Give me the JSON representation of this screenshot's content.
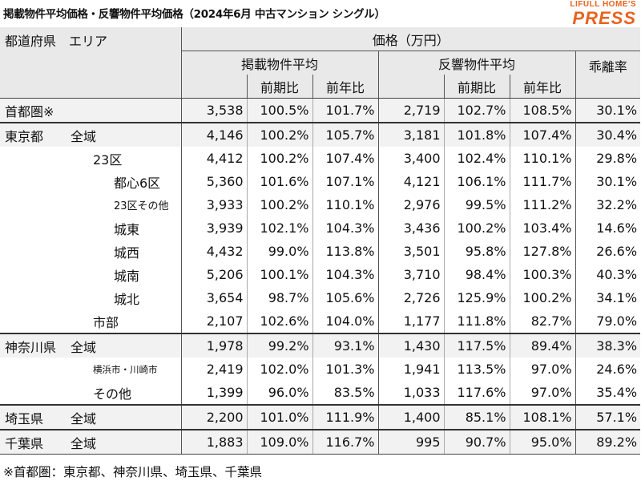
{
  "title": "掲載物件平均価格・反響物件平均価格（2024年6月 中古マンション シングル）",
  "logo": {
    "top": "LIFULL HOME'S",
    "main": "PRESS"
  },
  "colors": {
    "logo": "#e8621e",
    "header_bg": "#e9e9e9",
    "row_shade": "#f2f2f2"
  },
  "header": {
    "pref_area": "都道府県　エリア",
    "price": "価格（万円）",
    "listing_avg": "掲載物件平均",
    "response_avg": "反響物件平均",
    "divergence": "乖離率",
    "prev_period": "前期比",
    "prev_year": "前年比"
  },
  "rows": [
    {
      "name": "首都圏※",
      "area": "",
      "l_price": "3,538",
      "l_qoq": "100.5%",
      "l_yoy": "101.7%",
      "r_price": "2,719",
      "r_qoq": "102.7%",
      "r_yoy": "108.5%",
      "div": "30.1%"
    },
    {
      "name": "東京都",
      "area": "全域",
      "l_price": "4,146",
      "l_qoq": "100.2%",
      "l_yoy": "105.7%",
      "r_price": "3,181",
      "r_qoq": "101.8%",
      "r_yoy": "107.4%",
      "div": "30.4%"
    },
    {
      "name": "",
      "area": "23区",
      "l_price": "4,412",
      "l_qoq": "100.2%",
      "l_yoy": "107.4%",
      "r_price": "3,400",
      "r_qoq": "102.4%",
      "r_yoy": "110.1%",
      "div": "29.8%"
    },
    {
      "name": "",
      "area": "都心6区",
      "l_price": "5,360",
      "l_qoq": "101.6%",
      "l_yoy": "107.1%",
      "r_price": "4,121",
      "r_qoq": "106.1%",
      "r_yoy": "111.7%",
      "div": "30.1%"
    },
    {
      "name": "",
      "area": "23区その他",
      "l_price": "3,933",
      "l_qoq": "100.2%",
      "l_yoy": "110.1%",
      "r_price": "2,976",
      "r_qoq": "99.5%",
      "r_yoy": "111.2%",
      "div": "32.2%"
    },
    {
      "name": "",
      "area": "城東",
      "l_price": "3,939",
      "l_qoq": "102.1%",
      "l_yoy": "104.3%",
      "r_price": "3,436",
      "r_qoq": "100.2%",
      "r_yoy": "103.4%",
      "div": "14.6%"
    },
    {
      "name": "",
      "area": "城西",
      "l_price": "4,432",
      "l_qoq": "99.0%",
      "l_yoy": "113.8%",
      "r_price": "3,501",
      "r_qoq": "95.8%",
      "r_yoy": "127.8%",
      "div": "26.6%"
    },
    {
      "name": "",
      "area": "城南",
      "l_price": "5,206",
      "l_qoq": "100.1%",
      "l_yoy": "104.3%",
      "r_price": "3,710",
      "r_qoq": "98.4%",
      "r_yoy": "100.3%",
      "div": "40.3%"
    },
    {
      "name": "",
      "area": "城北",
      "l_price": "3,654",
      "l_qoq": "98.7%",
      "l_yoy": "105.6%",
      "r_price": "2,726",
      "r_qoq": "125.9%",
      "r_yoy": "100.2%",
      "div": "34.1%"
    },
    {
      "name": "",
      "area": "市部",
      "l_price": "2,107",
      "l_qoq": "102.6%",
      "l_yoy": "104.0%",
      "r_price": "1,177",
      "r_qoq": "111.8%",
      "r_yoy": "82.7%",
      "div": "79.0%"
    },
    {
      "name": "神奈川県",
      "area": "全域",
      "l_price": "1,978",
      "l_qoq": "99.2%",
      "l_yoy": "93.1%",
      "r_price": "1,430",
      "r_qoq": "117.5%",
      "r_yoy": "89.4%",
      "div": "38.3%"
    },
    {
      "name": "",
      "area": "横浜市・川崎市",
      "l_price": "2,419",
      "l_qoq": "102.0%",
      "l_yoy": "101.3%",
      "r_price": "1,941",
      "r_qoq": "113.5%",
      "r_yoy": "97.0%",
      "div": "24.6%"
    },
    {
      "name": "",
      "area": "その他",
      "l_price": "1,399",
      "l_qoq": "96.0%",
      "l_yoy": "83.5%",
      "r_price": "1,033",
      "r_qoq": "117.6%",
      "r_yoy": "97.0%",
      "div": "35.4%"
    },
    {
      "name": "埼玉県",
      "area": "全域",
      "l_price": "2,200",
      "l_qoq": "101.0%",
      "l_yoy": "111.9%",
      "r_price": "1,400",
      "r_qoq": "85.1%",
      "r_yoy": "108.1%",
      "div": "57.1%"
    },
    {
      "name": "千葉県",
      "area": "全域",
      "l_price": "1,883",
      "l_qoq": "109.0%",
      "l_yoy": "116.7%",
      "r_price": "995",
      "r_qoq": "90.7%",
      "r_yoy": "95.0%",
      "div": "89.2%"
    }
  ],
  "footnote": "※首都圏：東京都、神奈川県、埼玉県、千葉県"
}
